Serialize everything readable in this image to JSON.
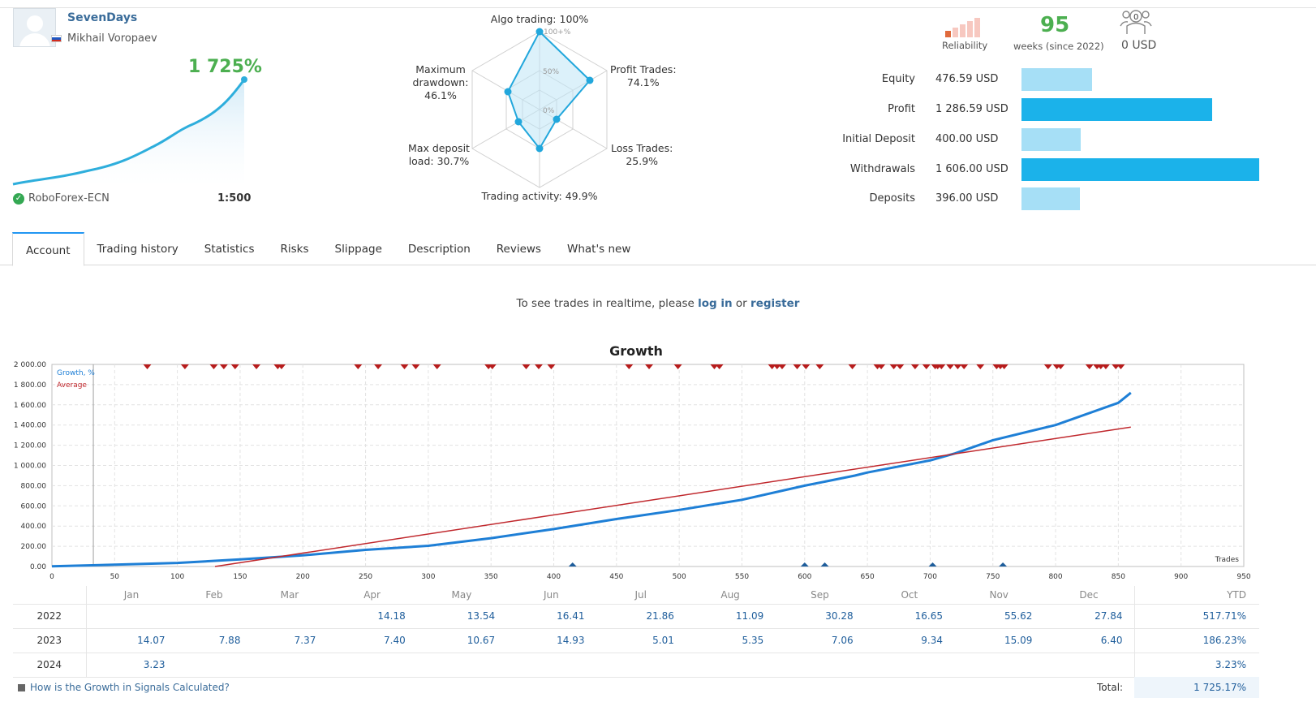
{
  "profile": {
    "signal_name": "SevenDays",
    "author": "Mikhail Voropaev",
    "growth_pct": "1 725%",
    "broker": "RoboForex-ECN",
    "leverage": "1:500"
  },
  "radar": {
    "algo": "Algo trading: 100%",
    "profit_trades_1": "Profit Trades:",
    "profit_trades_2": "74.1%",
    "loss_trades_1": "Loss Trades:",
    "loss_trades_2": "25.9%",
    "activity": "Trading activity: 49.9%",
    "deposit_load_1": "Max deposit",
    "deposit_load_2": "load: 30.7%",
    "drawdown_1": "Maximum",
    "drawdown_2": "drawdown:",
    "drawdown_3": "46.1%",
    "scale_100": "100+%",
    "scale_50": "50%",
    "scale_0": "0%"
  },
  "summary": {
    "reliability_label": "Reliability",
    "weeks": "95",
    "weeks_label": "weeks (since 2022)",
    "subscribers_count": "0",
    "subscribers_funds": "0 USD"
  },
  "stats": [
    {
      "name": "Equity",
      "value": "476.59 USD",
      "ratio": 0.297
    },
    {
      "name": "Profit",
      "value": "1 286.59 USD",
      "ratio": 0.801
    },
    {
      "name": "Initial Deposit",
      "value": "400.00 USD",
      "ratio": 0.249
    },
    {
      "name": "Withdrawals",
      "value": "1 606.00 USD",
      "ratio": 1.0
    },
    {
      "name": "Deposits",
      "value": "396.00 USD",
      "ratio": 0.247
    }
  ],
  "tabs": [
    "Account",
    "Trading history",
    "Statistics",
    "Risks",
    "Slippage",
    "Description",
    "Reviews",
    "What's new"
  ],
  "notice": {
    "prefix": "To see trades in realtime, please ",
    "login": "log in",
    "middle": " or ",
    "register": "register"
  },
  "chart_data": {
    "type": "line",
    "title": "Growth",
    "xlabel": "Trades",
    "ylabel": "",
    "xlim": [
      0,
      950
    ],
    "ylim": [
      0,
      2000
    ],
    "x_ticks": [
      0,
      50,
      100,
      150,
      200,
      250,
      300,
      350,
      400,
      450,
      500,
      550,
      600,
      650,
      700,
      750,
      800,
      850,
      900,
      950
    ],
    "y_ticks": [
      "0.00",
      "200.00",
      "400.00",
      "600.00",
      "800.00",
      "1 000.00",
      "1 200.00",
      "1 400.00",
      "1 600.00",
      "1 800.00",
      "2 000.00"
    ],
    "legend": [
      "Growth, %",
      "Average"
    ],
    "series": [
      {
        "name": "Growth, %",
        "color": "#1e7fd6",
        "points": [
          [
            0,
            2
          ],
          [
            32,
            12
          ],
          [
            50,
            18
          ],
          [
            100,
            35
          ],
          [
            150,
            70
          ],
          [
            200,
            110
          ],
          [
            250,
            165
          ],
          [
            300,
            205
          ],
          [
            350,
            280
          ],
          [
            400,
            370
          ],
          [
            450,
            470
          ],
          [
            500,
            560
          ],
          [
            550,
            660
          ],
          [
            600,
            800
          ],
          [
            640,
            900
          ],
          [
            650,
            930
          ],
          [
            700,
            1050
          ],
          [
            720,
            1120
          ],
          [
            750,
            1250
          ],
          [
            800,
            1400
          ],
          [
            850,
            1620
          ],
          [
            860,
            1720
          ]
        ]
      },
      {
        "name": "Average",
        "color": "#c0282d",
        "points": [
          [
            130,
            0
          ],
          [
            860,
            1380
          ]
        ]
      }
    ],
    "withdrawal_markers": [
      76,
      106,
      129,
      137,
      146,
      163,
      180,
      183,
      244,
      260,
      281,
      290,
      307,
      348,
      351,
      378,
      388,
      398,
      460,
      476,
      499,
      528,
      532,
      574,
      578,
      582,
      594,
      601,
      612,
      638,
      658,
      661,
      671,
      676,
      688,
      697,
      704,
      706,
      709,
      716,
      722,
      727,
      740,
      753,
      756,
      759,
      794,
      801,
      804,
      827,
      833,
      836,
      840,
      848,
      852
    ],
    "deposit_markers": [
      415,
      600,
      616,
      702,
      758
    ]
  },
  "table": {
    "months": [
      "Jan",
      "Feb",
      "Mar",
      "Apr",
      "May",
      "Jun",
      "Jul",
      "Aug",
      "Sep",
      "Oct",
      "Nov",
      "Dec"
    ],
    "ytd_label": "YTD",
    "rows": [
      {
        "year": "2022",
        "values": [
          "",
          "",
          "",
          "14.18",
          "13.54",
          "16.41",
          "21.86",
          "11.09",
          "30.28",
          "16.65",
          "55.62",
          "27.84"
        ],
        "ytd": "517.71%"
      },
      {
        "year": "2023",
        "values": [
          "14.07",
          "7.88",
          "7.37",
          "7.40",
          "10.67",
          "14.93",
          "5.01",
          "5.35",
          "7.06",
          "9.34",
          "15.09",
          "6.40"
        ],
        "ytd": "186.23%"
      },
      {
        "year": "2024",
        "values": [
          "3.23",
          "",
          "",
          "",
          "",
          "",
          "",
          "",
          "",
          "",
          "",
          ""
        ],
        "ytd": "3.23%"
      }
    ],
    "footer_link": "How is the Growth in Signals Calculated?",
    "total_label": "Total:",
    "total_value": "1 725.17%"
  }
}
